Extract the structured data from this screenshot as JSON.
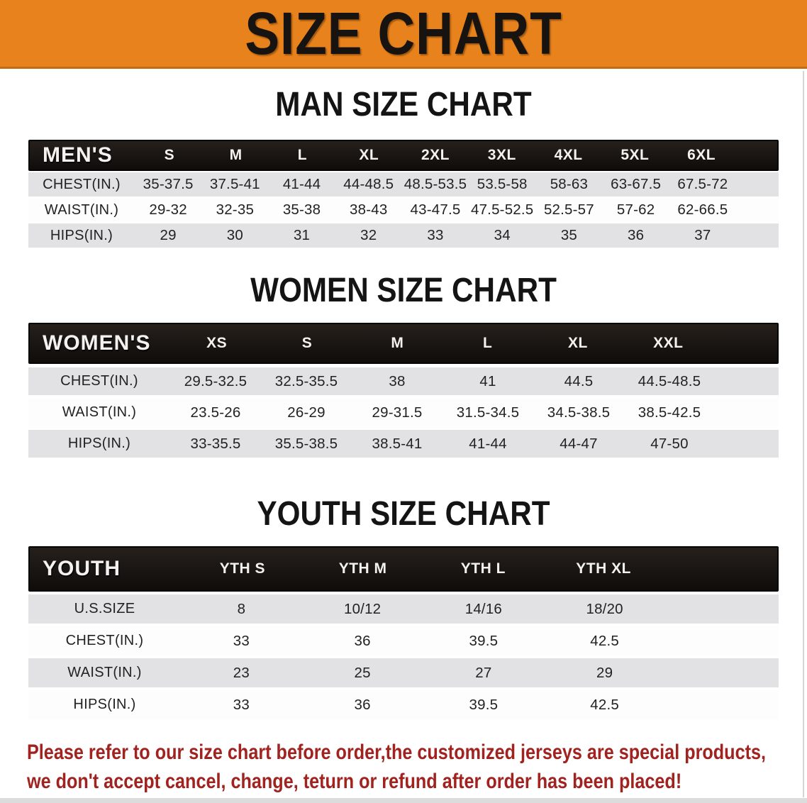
{
  "banner": {
    "title": "SIZE CHART"
  },
  "sections": [
    {
      "heading": "MAN SIZE CHART",
      "label": "MEN'S",
      "columns": [
        "S",
        "M",
        "L",
        "XL",
        "2XL",
        "3XL",
        "4XL",
        "5XL",
        "6XL"
      ],
      "rows": [
        {
          "label": "CHEST(IN.)",
          "values": [
            "35-37.5",
            "37.5-41",
            "41-44",
            "44-48.5",
            "48.5-53.5",
            "53.5-58",
            "58-63",
            "63-67.5",
            "67.5-72"
          ]
        },
        {
          "label": "WAIST(IN.)",
          "values": [
            "29-32",
            "32-35",
            "35-38",
            "38-43",
            "43-47.5",
            "47.5-52.5",
            "52.5-57",
            "57-62",
            "62-66.5"
          ]
        },
        {
          "label": "HIPS(IN.)",
          "values": [
            "29",
            "30",
            "31",
            "32",
            "33",
            "34",
            "35",
            "36",
            "37"
          ]
        }
      ]
    },
    {
      "heading": "WOMEN SIZE CHART",
      "label": "WOMEN'S",
      "columns": [
        "XS",
        "S",
        "M",
        "L",
        "XL",
        "XXL"
      ],
      "rows": [
        {
          "label": "CHEST(IN.)",
          "values": [
            "29.5-32.5",
            "32.5-35.5",
            "38",
            "41",
            "44.5",
            "44.5-48.5"
          ]
        },
        {
          "label": "WAIST(IN.)",
          "values": [
            "23.5-26",
            "26-29",
            "29-31.5",
            "31.5-34.5",
            "34.5-38.5",
            "38.5-42.5"
          ]
        },
        {
          "label": "HIPS(IN.)",
          "values": [
            "33-35.5",
            "35.5-38.5",
            "38.5-41",
            "41-44",
            "44-47",
            "47-50"
          ]
        }
      ]
    },
    {
      "heading": "YOUTH SIZE CHART",
      "label": "YOUTH",
      "columns": [
        "YTH S",
        "YTH M",
        "YTH L",
        "YTH XL"
      ],
      "rows": [
        {
          "label": "U.S.SIZE",
          "values": [
            "8",
            "10/12",
            "14/16",
            "18/20"
          ]
        },
        {
          "label": "CHEST(IN.)",
          "values": [
            "33",
            "36",
            "39.5",
            "42.5"
          ]
        },
        {
          "label": "WAIST(IN.)",
          "values": [
            "23",
            "25",
            "27",
            "29"
          ]
        },
        {
          "label": "HIPS(IN.)",
          "values": [
            "33",
            "36",
            "39.5",
            "42.5"
          ]
        }
      ]
    }
  ],
  "disclaimer": {
    "line1": "Please refer to our size chart before order,the customized jerseys are special products,",
    "line2": "we don't accept cancel, change, teturn or refund after order has been placed!"
  },
  "colors": {
    "banner_bg": "#E8821C",
    "header_bar": "#171310",
    "stripe_gray": "#E2E2E4",
    "disclaimer_red": "#A12320"
  }
}
